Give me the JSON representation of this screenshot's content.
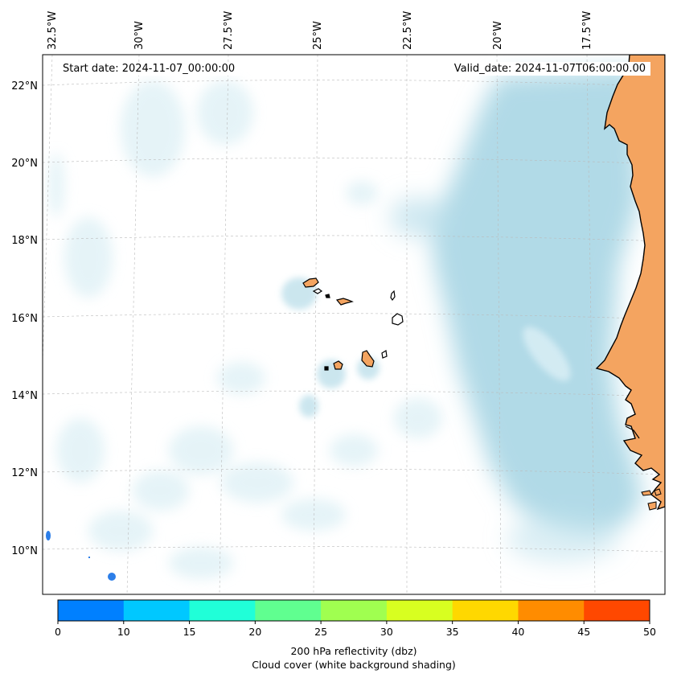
{
  "header": {
    "start_date": "Start date: 2024-11-07_00:00:00",
    "valid_date": "Valid_date: 2024-11-07T06:00:00.00"
  },
  "map": {
    "lon_labels": [
      "32.5°W",
      "30°W",
      "27.5°W",
      "25°W",
      "22.5°W",
      "20°W",
      "17.5°W"
    ],
    "lat_labels": [
      "22°N",
      "20°N",
      "18°N",
      "16°N",
      "14°N",
      "12°N",
      "10°N"
    ],
    "gridlines": "dashed",
    "land_color": "#f4a460",
    "cloud_color": "#add8e6",
    "ocean_color": "#ffffff"
  },
  "colorbar": {
    "ticks": [
      "0",
      "10",
      "15",
      "20",
      "25",
      "30",
      "35",
      "40",
      "45",
      "50"
    ],
    "colors": [
      "#0080ff",
      "#00c8ff",
      "#20ffd8",
      "#60ff90",
      "#a0ff50",
      "#d8ff20",
      "#ffd800",
      "#ff8c00",
      "#ff4800"
    ],
    "label_line1": "200 hPa reflectivity (dbz)",
    "label_line2": "Cloud cover (white background shading)"
  }
}
